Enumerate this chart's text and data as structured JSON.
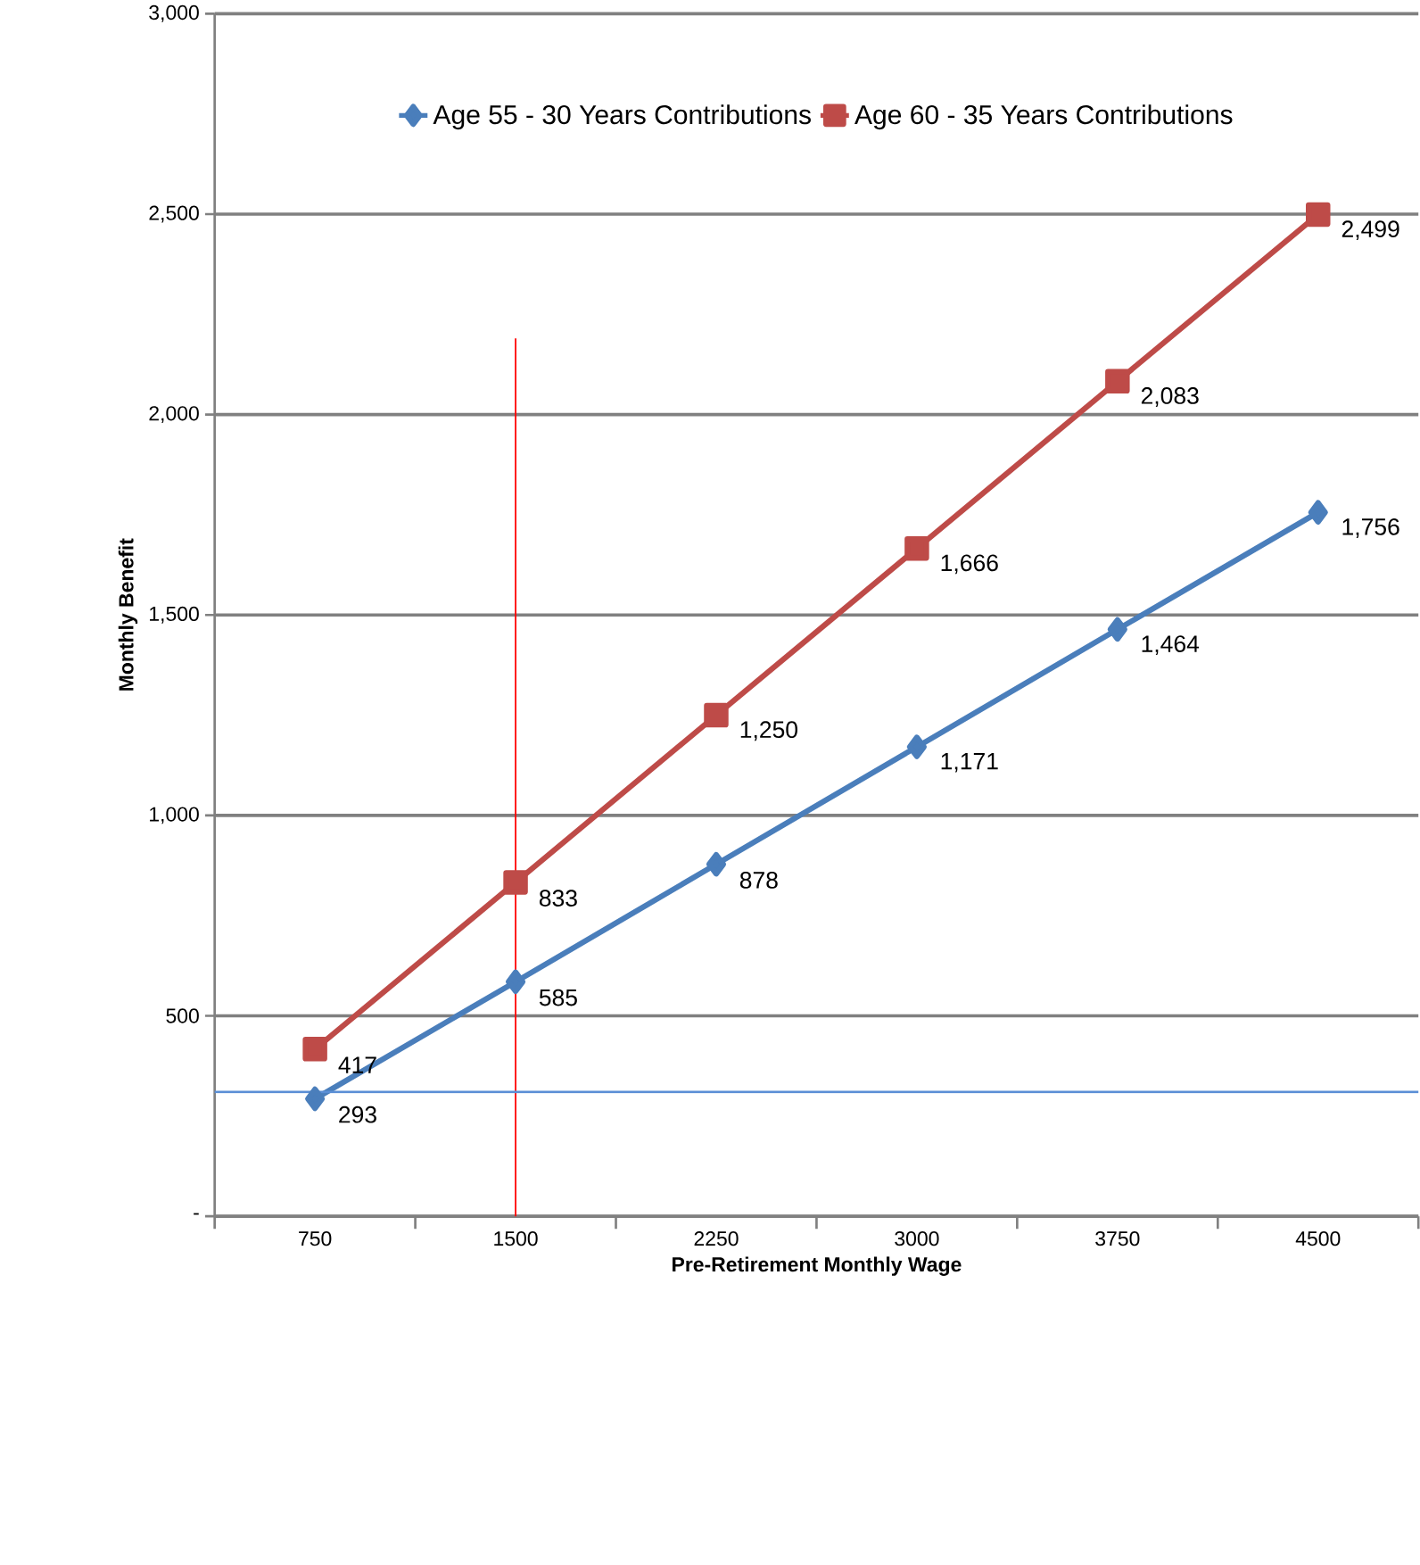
{
  "chart_data": {
    "type": "line",
    "xlabel": "Pre-Retirement Monthly Wage",
    "ylabel": "Monthly Benefit",
    "categories": [
      "750",
      "1500",
      "2250",
      "3000",
      "3750",
      "4500"
    ],
    "series": [
      {
        "name": "Age 55 - 30 Years Contributions",
        "color": "#4a7ebb",
        "marker": "diamond",
        "values": [
          293,
          585,
          878,
          1171,
          1464,
          1756
        ],
        "value_labels": [
          "293",
          "585",
          "878",
          "1,171",
          "1,464",
          "1,756"
        ]
      },
      {
        "name": "Age 60 - 35 Years Contributions",
        "color": "#be4b48",
        "marker": "square",
        "values": [
          417,
          833,
          1250,
          1666,
          2083,
          2499
        ],
        "value_labels": [
          "417",
          "833",
          "1,250",
          "1,666",
          "2,083",
          "2,499"
        ]
      }
    ],
    "ylim": [
      0,
      3000
    ],
    "yticks": [
      {
        "value": 0,
        "label": "-"
      },
      {
        "value": 500,
        "label": "500"
      },
      {
        "value": 1000,
        "label": "1,000"
      },
      {
        "value": 1500,
        "label": "1,500"
      },
      {
        "value": 2000,
        "label": "2,000"
      },
      {
        "value": 2500,
        "label": "2,500"
      },
      {
        "value": 3000,
        "label": "3,000"
      }
    ],
    "ref_lines": [
      {
        "axis": "x",
        "value": "1500",
        "color": "#ff0000"
      },
      {
        "axis": "y",
        "value": 310,
        "color": "#5b8fd6"
      }
    ],
    "grid": "y",
    "legend": "top",
    "line_style": "solid"
  }
}
